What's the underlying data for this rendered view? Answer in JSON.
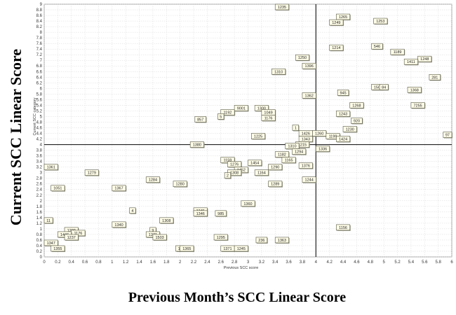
{
  "chart_data": {
    "type": "scatter",
    "xlabel": "Previous Month’s SCC Linear Score",
    "ylabel": "Current SCC Linear Score",
    "inner_xlabel": "Previous SCC score",
    "inner_ylabel": "Current SCC category",
    "xlim": [
      0,
      6
    ],
    "ylim": [
      0,
      9
    ],
    "x_ticks": [
      "0",
      "0.2",
      "0.4",
      "0.6",
      "0.8",
      "1",
      "1.2",
      "1.4",
      "1.6",
      "1.8",
      "2",
      "2.2",
      "2.4",
      "2.6",
      "2.8",
      "3",
      "3.2",
      "3.4",
      "3.6",
      "3.8",
      "4",
      "4.2",
      "4.4",
      "4.6",
      "4.8",
      "5",
      "5.2",
      "5.4",
      "5.6",
      "5.8",
      "6"
    ],
    "y_ticks": [
      "0",
      "0.2",
      "0.4",
      "0.6",
      "0.8",
      "1",
      "1.2",
      "1.4",
      "1.6",
      "1.8",
      "2",
      "2.2",
      "2.4",
      "2.6",
      "2.8",
      "3",
      "3.2",
      "3.4",
      "3.6",
      "3.8",
      "4",
      "4.2",
      "4.4",
      "4.6",
      "4.8",
      "5",
      "5.2",
      "5.4",
      "5.6",
      "5.8",
      "6",
      "6.2",
      "6.4",
      "6.6",
      "6.8",
      "7",
      "7.2",
      "7.4",
      "7.6",
      "7.8",
      "8",
      "8.2",
      "8.4",
      "8.6",
      "8.8",
      "9"
    ],
    "reference_lines": {
      "x": 4,
      "y": 4
    },
    "grid": true,
    "points": [
      {
        "label": "1235",
        "x": 3.5,
        "y": 9.0
      },
      {
        "label": "1265",
        "x": 4.4,
        "y": 8.55
      },
      {
        "label": "1249",
        "x": 4.3,
        "y": 8.35
      },
      {
        "label": "1253",
        "x": 4.95,
        "y": 8.4
      },
      {
        "label": "1214",
        "x": 4.3,
        "y": 7.45
      },
      {
        "label": "546",
        "x": 4.9,
        "y": 7.5
      },
      {
        "label": "1189",
        "x": 5.2,
        "y": 7.3
      },
      {
        "label": "1248",
        "x": 5.6,
        "y": 7.05
      },
      {
        "label": "1411",
        "x": 5.4,
        "y": 6.95
      },
      {
        "label": "1250",
        "x": 3.8,
        "y": 7.1
      },
      {
        "label": "1396",
        "x": 3.9,
        "y": 6.8
      },
      {
        "label": "1310",
        "x": 3.45,
        "y": 6.6
      },
      {
        "label": "281",
        "x": 5.75,
        "y": 6.4
      },
      {
        "label": "150",
        "x": 4.9,
        "y": 6.05
      },
      {
        "label": "84",
        "x": 5.0,
        "y": 6.05
      },
      {
        "label": "1368",
        "x": 5.45,
        "y": 5.95
      },
      {
        "label": "945",
        "x": 4.4,
        "y": 5.85
      },
      {
        "label": "1362",
        "x": 3.9,
        "y": 5.75
      },
      {
        "label": "7255",
        "x": 5.5,
        "y": 5.4
      },
      {
        "label": "1268",
        "x": 4.6,
        "y": 5.4
      },
      {
        "label": "1300",
        "x": 3.2,
        "y": 5.3
      },
      {
        "label": "9001",
        "x": 2.9,
        "y": 5.3
      },
      {
        "label": "1049",
        "x": 3.3,
        "y": 5.15
      },
      {
        "label": "1192",
        "x": 2.7,
        "y": 5.15
      },
      {
        "label": "1243",
        "x": 4.4,
        "y": 5.1
      },
      {
        "label": "5",
        "x": 2.6,
        "y": 5.0
      },
      {
        "label": "1176",
        "x": 3.3,
        "y": 4.95
      },
      {
        "label": "857",
        "x": 2.3,
        "y": 4.9
      },
      {
        "label": "920",
        "x": 4.6,
        "y": 4.85
      },
      {
        "label": "1",
        "x": 3.7,
        "y": 4.6
      },
      {
        "label": "1230",
        "x": 4.5,
        "y": 4.55
      },
      {
        "label": "1426",
        "x": 3.85,
        "y": 4.4
      },
      {
        "label": "1260",
        "x": 4.05,
        "y": 4.4
      },
      {
        "label": "1199",
        "x": 4.25,
        "y": 4.3
      },
      {
        "label": "97",
        "x": 6.0,
        "y": 4.35
      },
      {
        "label": "1225",
        "x": 3.15,
        "y": 4.3
      },
      {
        "label": "1343",
        "x": 3.85,
        "y": 4.2
      },
      {
        "label": "1424",
        "x": 4.4,
        "y": 4.2
      },
      {
        "label": "1380",
        "x": 2.25,
        "y": 4.0
      },
      {
        "label": "1215",
        "x": 3.8,
        "y": 4.0
      },
      {
        "label": "1310",
        "x": 3.65,
        "y": 3.95
      },
      {
        "label": "1336",
        "x": 4.1,
        "y": 3.85
      },
      {
        "label": "1294",
        "x": 3.75,
        "y": 3.75
      },
      {
        "label": "1182",
        "x": 3.5,
        "y": 3.65
      },
      {
        "label": "1165",
        "x": 3.6,
        "y": 3.45
      },
      {
        "label": "1159",
        "x": 2.7,
        "y": 3.45
      },
      {
        "label": "1454",
        "x": 3.1,
        "y": 3.35
      },
      {
        "label": "1276",
        "x": 2.8,
        "y": 3.3
      },
      {
        "label": "1376",
        "x": 3.85,
        "y": 3.25
      },
      {
        "label": "1290",
        "x": 3.4,
        "y": 3.2
      },
      {
        "label": "1452",
        "x": 2.9,
        "y": 3.1
      },
      {
        "label": "1308",
        "x": 2.8,
        "y": 3.0
      },
      {
        "label": "1164",
        "x": 3.2,
        "y": 3.0
      },
      {
        "label": "2",
        "x": 2.7,
        "y": 2.9
      },
      {
        "label": "1361",
        "x": 0.0,
        "y": 3.2
      },
      {
        "label": "1279",
        "x": 0.7,
        "y": 3.0
      },
      {
        "label": "1284",
        "x": 1.6,
        "y": 2.75
      },
      {
        "label": "1244",
        "x": 3.9,
        "y": 2.75
      },
      {
        "label": "1280",
        "x": 2.0,
        "y": 2.6
      },
      {
        "label": "1289",
        "x": 3.4,
        "y": 2.6
      },
      {
        "label": "1051",
        "x": 0.2,
        "y": 2.45
      },
      {
        "label": "1367",
        "x": 1.1,
        "y": 2.45
      },
      {
        "label": "1360",
        "x": 3.0,
        "y": 1.9
      },
      {
        "label": "4",
        "x": 1.3,
        "y": 1.65
      },
      {
        "label": "1345",
        "x": 2.3,
        "y": 1.65
      },
      {
        "label": "1346",
        "x": 2.3,
        "y": 1.55
      },
      {
        "label": "985",
        "x": 2.6,
        "y": 1.55
      },
      {
        "label": "11",
        "x": 0.0,
        "y": 1.3
      },
      {
        "label": "1308",
        "x": 1.8,
        "y": 1.3
      },
      {
        "label": "1340",
        "x": 1.1,
        "y": 1.15
      },
      {
        "label": "1156",
        "x": 4.4,
        "y": 1.05
      },
      {
        "label": "1299",
        "x": 0.4,
        "y": 0.95
      },
      {
        "label": "9",
        "x": 1.6,
        "y": 0.95
      },
      {
        "label": "1176",
        "x": 0.5,
        "y": 0.85
      },
      {
        "label": "1446",
        "x": 0.3,
        "y": 0.8
      },
      {
        "label": "1237",
        "x": 0.4,
        "y": 0.7
      },
      {
        "label": "1271",
        "x": 1.6,
        "y": 0.8
      },
      {
        "label": "1503",
        "x": 1.7,
        "y": 0.7
      },
      {
        "label": "1295",
        "x": 2.6,
        "y": 0.7
      },
      {
        "label": "236",
        "x": 3.2,
        "y": 0.6
      },
      {
        "label": "1363",
        "x": 3.5,
        "y": 0.6
      },
      {
        "label": "1347",
        "x": 0.0,
        "y": 0.5
      },
      {
        "label": "1355",
        "x": 0.2,
        "y": 0.3
      },
      {
        "label": "13",
        "x": 2.0,
        "y": 0.3
      },
      {
        "label": "1365",
        "x": 2.1,
        "y": 0.3
      },
      {
        "label": "1371",
        "x": 2.7,
        "y": 0.3
      },
      {
        "label": "1245",
        "x": 2.9,
        "y": 0.3
      }
    ]
  }
}
